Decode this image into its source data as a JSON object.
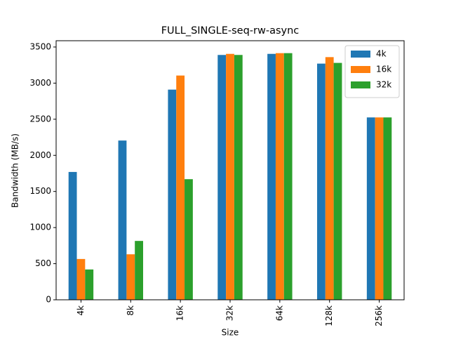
{
  "chart_data": {
    "type": "bar",
    "title": "FULL_SINGLE-seq-rw-async",
    "x_label": "Size",
    "y_label": "Bandwidth (MB/s)",
    "categories": [
      "4k",
      "8k",
      "16k",
      "32k",
      "64k",
      "128k",
      "256k"
    ],
    "series": [
      {
        "name": "4k",
        "color": "#1f77b4",
        "values": [
          1770,
          2205,
          2910,
          3390,
          3405,
          3270,
          2525
        ]
      },
      {
        "name": "16k",
        "color": "#ff7f0e",
        "values": [
          565,
          630,
          3105,
          3405,
          3415,
          3360,
          2525
        ]
      },
      {
        "name": "32k",
        "color": "#2ca02c",
        "values": [
          420,
          815,
          1670,
          3390,
          3415,
          3280,
          2525
        ]
      }
    ],
    "ylim": [
      0,
      3587
    ],
    "yticks": [
      0,
      500,
      1000,
      1500,
      2000,
      2500,
      3000,
      3500
    ],
    "grid": false,
    "legend": "upper right"
  }
}
